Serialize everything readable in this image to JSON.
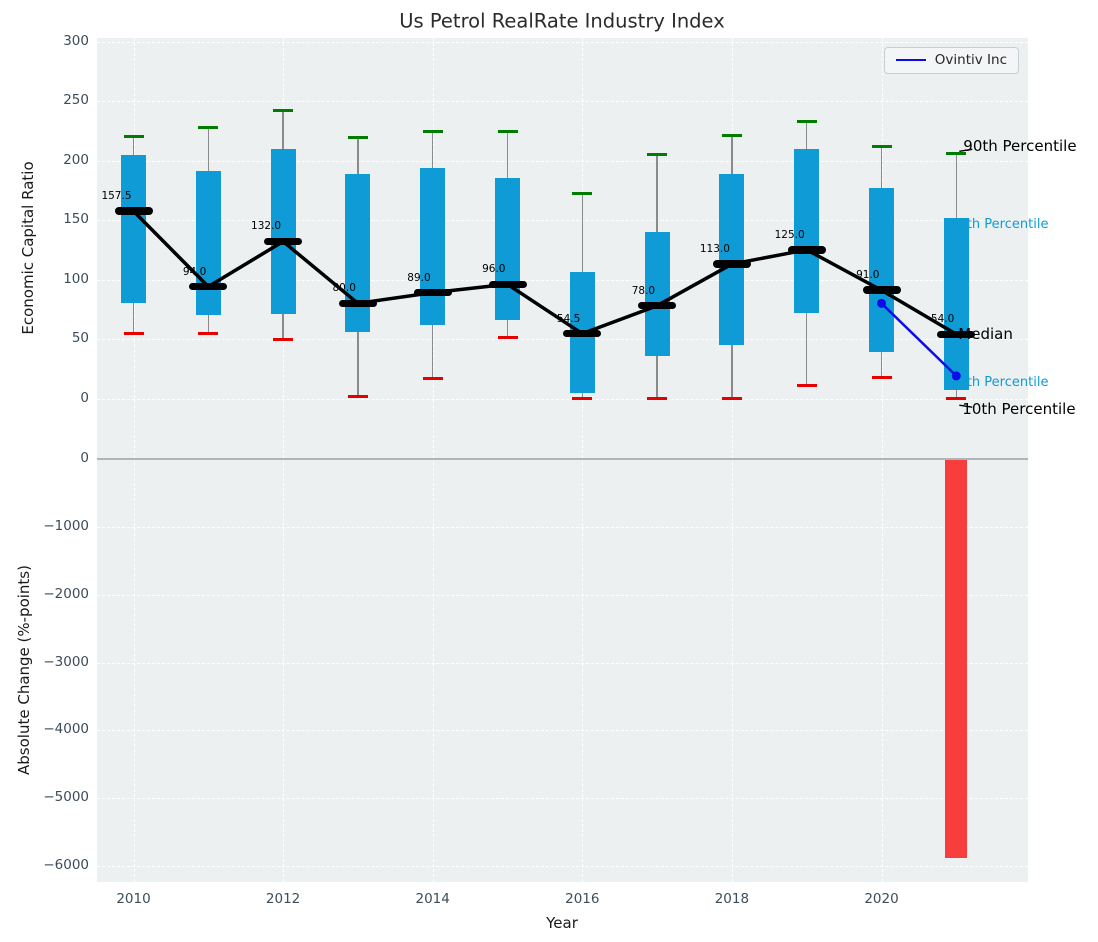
{
  "figure_title": "Us Petrol RealRate Industry Index",
  "colors": {
    "box_fill": "#0f9bd5",
    "median": "#000000",
    "p90_cap": "#007d00",
    "p10_cap": "#e60000",
    "company_line": "#0b0beb",
    "bar_negative": "#f83d3d",
    "annotation_percentile_text": "#0f9bd5",
    "plot_background": "#edf0f1"
  },
  "chart_data": [
    {
      "type": "boxplot",
      "title": "Us Petrol RealRate Industry Index",
      "ylabel": "Economic Capital Ratio",
      "ylim": [
        -50,
        303
      ],
      "yticks": [
        0,
        50,
        100,
        150,
        200,
        250,
        300
      ],
      "xticks": [
        2010,
        2012,
        2014,
        2016,
        2018,
        2020
      ],
      "grid": "white dashed on light gray",
      "legend": {
        "label": "Ovintiv Inc",
        "position": "upper right"
      },
      "boxes": [
        {
          "year": 2010,
          "p10": 55,
          "q1": 80,
          "median": 157.5,
          "q3": 205,
          "p90": 220,
          "label": "157.5"
        },
        {
          "year": 2011,
          "p10": 55,
          "q1": 70,
          "median": 94.0,
          "q3": 191,
          "p90": 228,
          "label": "94.0"
        },
        {
          "year": 2012,
          "p10": 50,
          "q1": 71,
          "median": 132.0,
          "q3": 210,
          "p90": 242,
          "label": "132.0"
        },
        {
          "year": 2013,
          "p10": 2,
          "q1": 56,
          "median": 80.0,
          "q3": 189,
          "p90": 219,
          "label": "80.0"
        },
        {
          "year": 2014,
          "p10": 17,
          "q1": 62,
          "median": 89.0,
          "q3": 194,
          "p90": 224,
          "label": "89.0"
        },
        {
          "year": 2015,
          "p10": 51,
          "q1": 66,
          "median": 96.0,
          "q3": 185,
          "p90": 224,
          "label": "96.0"
        },
        {
          "year": 2016,
          "p10": 0,
          "q1": 5,
          "median": 54.5,
          "q3": 106,
          "p90": 172,
          "label": "54.5"
        },
        {
          "year": 2017,
          "p10": 0,
          "q1": 36,
          "median": 78.0,
          "q3": 140,
          "p90": 205,
          "label": "78.0"
        },
        {
          "year": 2018,
          "p10": 0,
          "q1": 45,
          "median": 113.0,
          "q3": 189,
          "p90": 221,
          "label": "113.0"
        },
        {
          "year": 2019,
          "p10": 11,
          "q1": 72,
          "median": 125.0,
          "q3": 210,
          "p90": 233,
          "label": "125.0"
        },
        {
          "year": 2020,
          "p10": 18,
          "q1": 39,
          "median": 91.0,
          "q3": 177,
          "p90": 212,
          "label": "91.0"
        },
        {
          "year": 2021,
          "p10": 0,
          "q1": 7,
          "median": 54.0,
          "q3": 152,
          "p90": 206,
          "label": "54.0"
        }
      ],
      "series": [
        {
          "name": "Ovintiv Inc",
          "color": "#0b0beb",
          "points": [
            {
              "year": 2020,
              "value": 80
            },
            {
              "year": 2021,
              "value": 19
            }
          ]
        }
      ],
      "annotations": [
        {
          "text": "90th Percentile",
          "value": 212,
          "color": "#000000",
          "size": 15,
          "dx": 7,
          "layer": "front",
          "leader": true
        },
        {
          "text": "75th Percentile",
          "value": 146,
          "color": "#0f9bd5",
          "size": 13,
          "dx": -6,
          "layer": "behind"
        },
        {
          "text": "Median",
          "value": 54,
          "color": "#000000",
          "size": 15,
          "dx": 2,
          "layer": "underdash"
        },
        {
          "text": "25th Percentile",
          "value": 13,
          "color": "#0f9bd5",
          "size": 13,
          "dx": -6,
          "layer": "behind"
        },
        {
          "text": "10th Percentile",
          "value": -9,
          "color": "#000000",
          "size": 15,
          "dx": 6,
          "layer": "front",
          "leader": true
        }
      ]
    },
    {
      "type": "bar",
      "ylabel": "Absolute Change (%-points)",
      "xlabel": "Year",
      "ylim": [
        -6235,
        20
      ],
      "yticks": [
        0,
        -1000,
        -2000,
        -3000,
        -4000,
        -5000,
        -6000
      ],
      "xticks": [
        2010,
        2012,
        2014,
        2016,
        2018,
        2020
      ],
      "bars": [
        {
          "year": 2021,
          "value": -5880
        }
      ],
      "bar_color": "#f83d3d"
    }
  ]
}
